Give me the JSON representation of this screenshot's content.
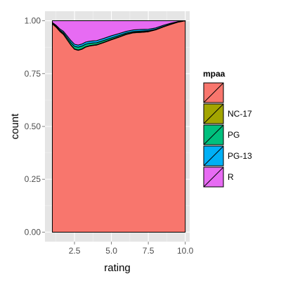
{
  "chart_data": {
    "type": "area",
    "stacked": "fill",
    "xlabel": "rating",
    "ylabel": "count",
    "xlim": [
      0.5,
      10.3
    ],
    "ylim": [
      -0.045,
      1.045
    ],
    "xticks": [
      2.5,
      5.0,
      7.5,
      10.0
    ],
    "xtick_labels": [
      "2.5",
      "5.0",
      "7.5",
      "10.0"
    ],
    "yticks": [
      0,
      0.25,
      0.5,
      0.75,
      1.0
    ],
    "ytick_labels": [
      "0.00",
      "0.25",
      "0.50",
      "0.75",
      "1.00"
    ],
    "grid": true,
    "background": "#e5e5e5",
    "legend": {
      "title": "mpaa",
      "position": "right",
      "entries": [
        {
          "label": "",
          "color": "#F8766D"
        },
        {
          "label": "NC-17",
          "color": "#A3A500"
        },
        {
          "label": "PG",
          "color": "#00BF7D"
        },
        {
          "label": "PG-13",
          "color": "#00B0F6"
        },
        {
          "label": "R",
          "color": "#E76BF3"
        }
      ]
    },
    "x": [
      1.0,
      1.25,
      1.5,
      1.75,
      2.0,
      2.25,
      2.5,
      2.75,
      3.0,
      3.25,
      3.5,
      3.75,
      4.0,
      4.5,
      5.0,
      5.5,
      6.0,
      6.5,
      7.0,
      7.5,
      8.0,
      8.5,
      9.0,
      9.5,
      10.0
    ],
    "series": [
      {
        "color": "#F8766D",
        "values": [
          0.985,
          0.97,
          0.95,
          0.935,
          0.91,
          0.885,
          0.865,
          0.86,
          0.865,
          0.875,
          0.88,
          0.883,
          0.885,
          0.897,
          0.91,
          0.922,
          0.935,
          0.943,
          0.945,
          0.948,
          0.957,
          0.97,
          0.982,
          0.993,
          1.0
        ]
      },
      {
        "name": "NC-17",
        "color": "#A3A500",
        "values": [
          0.002,
          0.002,
          0.002,
          0.002,
          0.002,
          0.002,
          0.002,
          0.002,
          0.002,
          0.002,
          0.002,
          0.002,
          0.002,
          0.002,
          0.002,
          0.002,
          0.002,
          0.002,
          0.002,
          0.002,
          0.001,
          0.001,
          0.001,
          0.0,
          0.0
        ]
      },
      {
        "name": "PG",
        "color": "#00BF7D",
        "values": [
          0.002,
          0.003,
          0.004,
          0.006,
          0.008,
          0.01,
          0.012,
          0.013,
          0.013,
          0.012,
          0.011,
          0.01,
          0.009,
          0.008,
          0.007,
          0.006,
          0.005,
          0.004,
          0.004,
          0.003,
          0.002,
          0.002,
          0.001,
          0.001,
          0.0
        ]
      },
      {
        "name": "PG-13",
        "color": "#00B0F6",
        "values": [
          0.003,
          0.004,
          0.006,
          0.007,
          0.009,
          0.01,
          0.01,
          0.01,
          0.01,
          0.01,
          0.01,
          0.01,
          0.01,
          0.01,
          0.01,
          0.009,
          0.008,
          0.008,
          0.008,
          0.007,
          0.006,
          0.005,
          0.004,
          0.002,
          0.0
        ]
      },
      {
        "name": "R",
        "color": "#E76BF3",
        "values": [
          0.008,
          0.021,
          0.038,
          0.05,
          0.071,
          0.093,
          0.111,
          0.115,
          0.11,
          0.101,
          0.097,
          0.095,
          0.094,
          0.083,
          0.071,
          0.061,
          0.05,
          0.043,
          0.041,
          0.04,
          0.034,
          0.022,
          0.012,
          0.004,
          0.0
        ]
      }
    ]
  }
}
